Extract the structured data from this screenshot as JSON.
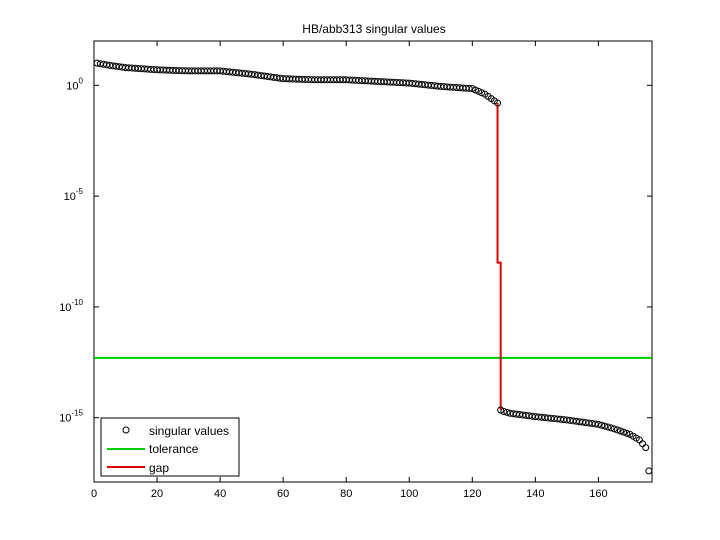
{
  "chart_data": {
    "type": "scatter",
    "title": "HB/abb313 singular values",
    "xlabel": "",
    "ylabel": "",
    "x_scale": "linear",
    "y_scale": "log",
    "xlim": [
      0,
      177
    ],
    "ylim_exponent": [
      -17.9,
      2
    ],
    "xticks": [
      0,
      20,
      40,
      60,
      80,
      100,
      120,
      140,
      160
    ],
    "yticks": [
      {
        "base": "10",
        "exp": "0",
        "value": 1
      },
      {
        "base": "10",
        "exp": "-5",
        "value": 1e-05
      },
      {
        "base": "10",
        "exp": "-10",
        "value": 1e-10
      },
      {
        "base": "10",
        "exp": "-15",
        "value": 1e-15
      }
    ],
    "grid": false,
    "legend_location": "bottom-left",
    "legend": [
      {
        "label": "singular values",
        "color": "#000000",
        "marker": "circle"
      },
      {
        "label": "tolerance",
        "color": "#00cc00",
        "marker": "line"
      },
      {
        "label": "gap",
        "color": "#dd0000",
        "marker": "line"
      }
    ],
    "series": [
      {
        "name": "singular values",
        "color": "#000000",
        "marker": "circle",
        "x_start": 1,
        "x_end": 176,
        "log10_anchor_points": [
          [
            1,
            1.0
          ],
          [
            5,
            0.9
          ],
          [
            10,
            0.8
          ],
          [
            20,
            0.7
          ],
          [
            30,
            0.65
          ],
          [
            40,
            0.65
          ],
          [
            50,
            0.5
          ],
          [
            60,
            0.3
          ],
          [
            70,
            0.25
          ],
          [
            80,
            0.25
          ],
          [
            100,
            0.1
          ],
          [
            110,
            -0.05
          ],
          [
            120,
            -0.15
          ],
          [
            124,
            -0.4
          ],
          [
            126,
            -0.6
          ],
          [
            128,
            -0.8
          ],
          [
            129,
            -14.65
          ],
          [
            130,
            -14.72
          ],
          [
            132,
            -14.8
          ],
          [
            140,
            -14.95
          ],
          [
            150,
            -15.1
          ],
          [
            160,
            -15.3
          ],
          [
            165,
            -15.5
          ],
          [
            170,
            -15.75
          ],
          [
            173,
            -16.0
          ],
          [
            175,
            -16.35
          ],
          [
            176,
            -17.4
          ]
        ]
      },
      {
        "name": "tolerance",
        "color": "#00cc00",
        "type": "hline",
        "log10_value": -12.3
      },
      {
        "name": "gap",
        "color": "#dd0000",
        "type": "line",
        "x": [
          128,
          128,
          129,
          129
        ],
        "log10_y": [
          -0.8,
          -8.0,
          -8.0,
          -14.65
        ]
      }
    ]
  }
}
